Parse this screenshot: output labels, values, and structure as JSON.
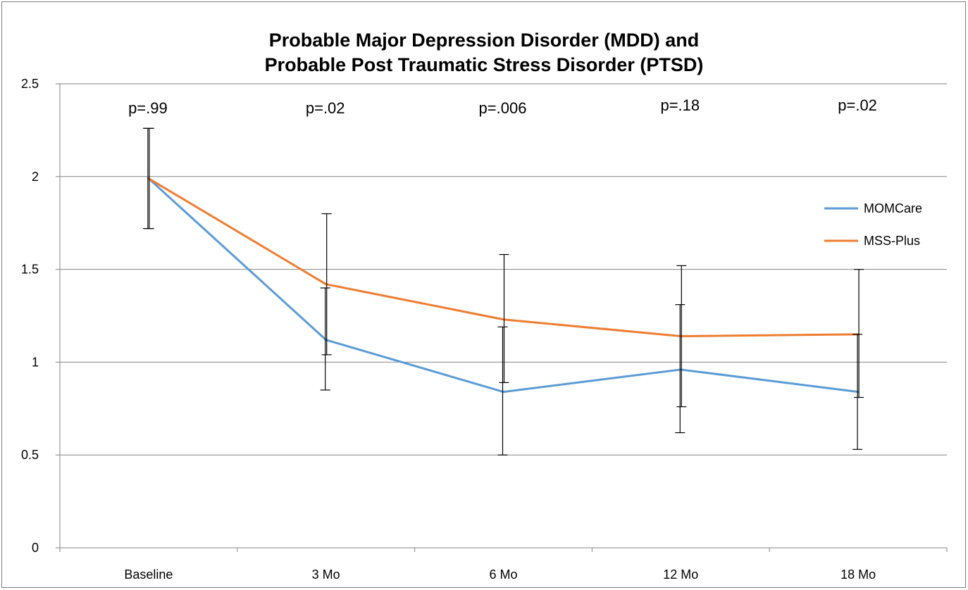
{
  "chart_data": {
    "type": "line",
    "title_lines": [
      "Probable Major Depression Disorder (MDD) and",
      "Probable Post Traumatic Stress Disorder (PTSD)"
    ],
    "xlabel": "",
    "ylabel": "",
    "categories": [
      "Baseline",
      "3 Mo",
      "6 Mo",
      "12 Mo",
      "18 Mo"
    ],
    "ylim": [
      0,
      2.5
    ],
    "yticks": [
      "0",
      "0.5",
      "1",
      "1.5",
      "2",
      "2.5"
    ],
    "grid": true,
    "legend_position": "right",
    "annotations": [
      "p=.99",
      "p=.02",
      "p=.006",
      "p=.18",
      "p=.02"
    ],
    "series": [
      {
        "name": "MOMCare",
        "color": "#5b9bd5",
        "values": [
          1.99,
          1.12,
          0.84,
          0.96,
          0.84
        ],
        "error_low": [
          1.72,
          0.85,
          0.5,
          0.62,
          0.53
        ],
        "error_high": [
          2.26,
          1.4,
          1.19,
          1.31,
          1.15
        ]
      },
      {
        "name": "MSS-Plus",
        "color": "#ed7d31",
        "values": [
          1.99,
          1.42,
          1.23,
          1.14,
          1.15
        ],
        "error_low": [
          1.72,
          1.04,
          0.89,
          0.76,
          0.81
        ],
        "error_high": [
          2.26,
          1.8,
          1.58,
          1.52,
          1.5
        ]
      }
    ]
  }
}
